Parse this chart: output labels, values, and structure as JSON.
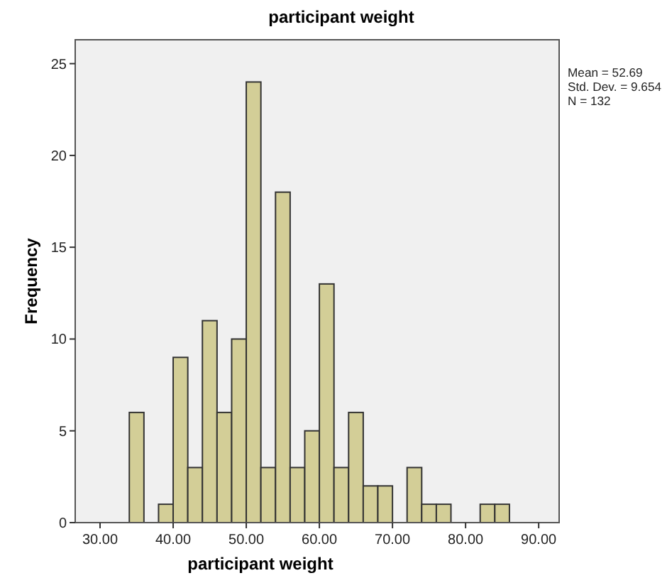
{
  "chart_data": {
    "type": "histogram",
    "title": "participant weight",
    "xlabel": "participant weight",
    "ylabel": "Frequency",
    "bins": [
      34,
      36,
      38,
      40,
      42,
      44,
      46,
      48,
      50,
      52,
      54,
      56,
      58,
      60,
      62,
      64,
      66,
      68,
      70,
      72,
      74,
      76,
      78,
      80,
      82,
      84,
      86
    ],
    "values": [
      6,
      0,
      1,
      9,
      3,
      11,
      6,
      10,
      24,
      3,
      18,
      3,
      5,
      13,
      3,
      6,
      2,
      2,
      0,
      3,
      1,
      1,
      0,
      0,
      1,
      1
    ],
    "color": "#d3ce97",
    "xlim": [
      26.6,
      92.8
    ],
    "xticks": [
      {
        "value": 30,
        "label": "30.00"
      },
      {
        "value": 40,
        "label": "40.00"
      },
      {
        "value": 50,
        "label": "50.00"
      },
      {
        "value": 60,
        "label": "60.00"
      },
      {
        "value": 70,
        "label": "70.00"
      },
      {
        "value": 80,
        "label": "80.00"
      },
      {
        "value": 90,
        "label": "90.00"
      }
    ],
    "ylim": [
      0,
      26.3
    ],
    "yticks": [
      0,
      5,
      10,
      15,
      20,
      25
    ],
    "grid": false,
    "annotations": [
      "Mean = 52.69",
      "Std. Dev. = 9.654",
      "N = 132"
    ]
  }
}
